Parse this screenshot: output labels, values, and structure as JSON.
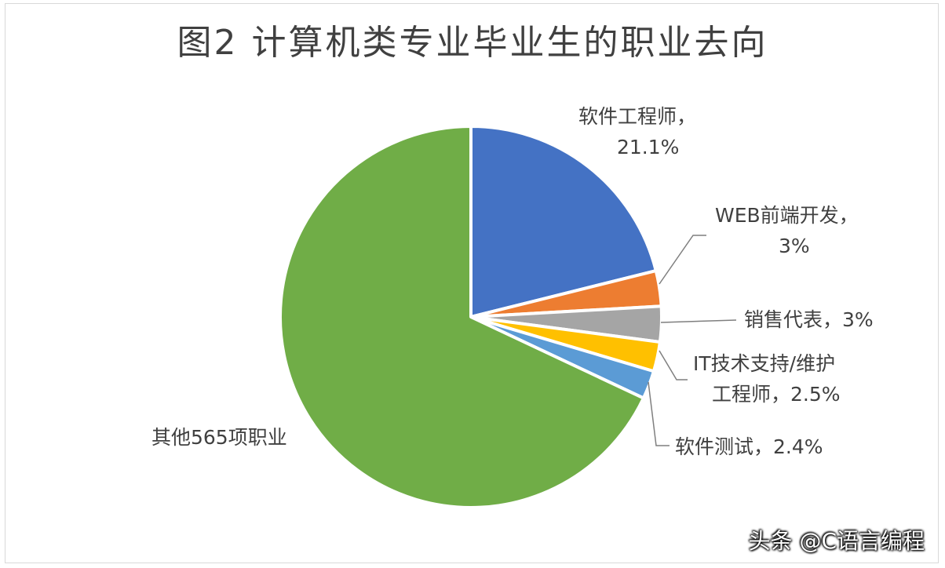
{
  "watermark": "头条 @C语言编程",
  "chart_data": {
    "type": "pie",
    "title": "图2 计算机类专业毕业生的职业去向",
    "slices": [
      {
        "label": "软件工程师，",
        "value_label": "21.1%",
        "value": 21.1,
        "color": "#4472C4"
      },
      {
        "label": "WEB前端开发，",
        "value_label": "3%",
        "value": 3,
        "color": "#ED7D31"
      },
      {
        "label": "销售代表，3%",
        "value_label": "",
        "value": 3,
        "color": "#A5A5A5"
      },
      {
        "label": "IT技术支持/维护",
        "value_label": "工程师，2.5%",
        "value": 2.5,
        "color": "#FFC000"
      },
      {
        "label": "软件测试，2.4%",
        "value_label": "",
        "value": 2.4,
        "color": "#5B9BD5"
      },
      {
        "label": "其他565项职业",
        "value_label": "",
        "value": 68,
        "color": "#70AD47"
      }
    ]
  }
}
